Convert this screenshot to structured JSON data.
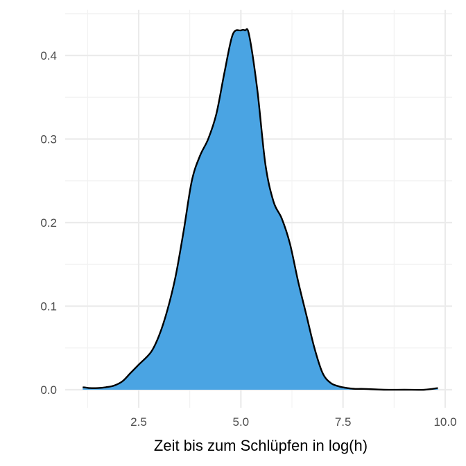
{
  "chart_data": {
    "type": "area",
    "subtype": "density",
    "title": "",
    "xlabel": "Zeit bis zum Schlüpfen in log(h)",
    "ylabel": "",
    "xlim": [
      1.0,
      10.0
    ],
    "ylim": [
      0.0,
      0.45
    ],
    "x_ticks": [
      2.5,
      5.0,
      7.5,
      10.0
    ],
    "x_tick_labels": [
      "2.5",
      "5.0",
      "7.5",
      "10.0"
    ],
    "y_ticks": [
      0.0,
      0.1,
      0.2,
      0.3,
      0.4
    ],
    "y_tick_labels": [
      "0.0",
      "0.1",
      "0.2",
      "0.3",
      "0.4"
    ],
    "grid": true,
    "legend": "none",
    "colors": {
      "fill": "#4aa4e3",
      "stroke": "#000000",
      "grid_major": "#ebebeb",
      "grid_minor": "#f2f2f2",
      "background": "#ffffff"
    },
    "series": [
      {
        "x": [
          1.13,
          1.3,
          1.5,
          1.7,
          1.9,
          2.1,
          2.3,
          2.5,
          2.8,
          3.0,
          3.2,
          3.4,
          3.6,
          3.8,
          4.0,
          4.2,
          4.4,
          4.6,
          4.8,
          5.0,
          5.1,
          5.2,
          5.4,
          5.6,
          5.8,
          6.0,
          6.2,
          6.4,
          6.6,
          6.8,
          7.0,
          7.2,
          7.4,
          7.6,
          7.8,
          8.0,
          8.5,
          9.0,
          9.5,
          9.82
        ],
        "y": [
          0.003,
          0.002,
          0.002,
          0.003,
          0.005,
          0.01,
          0.02,
          0.03,
          0.045,
          0.065,
          0.095,
          0.135,
          0.19,
          0.25,
          0.28,
          0.3,
          0.33,
          0.38,
          0.425,
          0.43,
          0.43,
          0.425,
          0.36,
          0.27,
          0.225,
          0.205,
          0.175,
          0.13,
          0.09,
          0.05,
          0.02,
          0.008,
          0.004,
          0.002,
          0.001,
          0.001,
          0.0,
          0.0,
          0.0,
          0.002
        ]
      }
    ]
  }
}
